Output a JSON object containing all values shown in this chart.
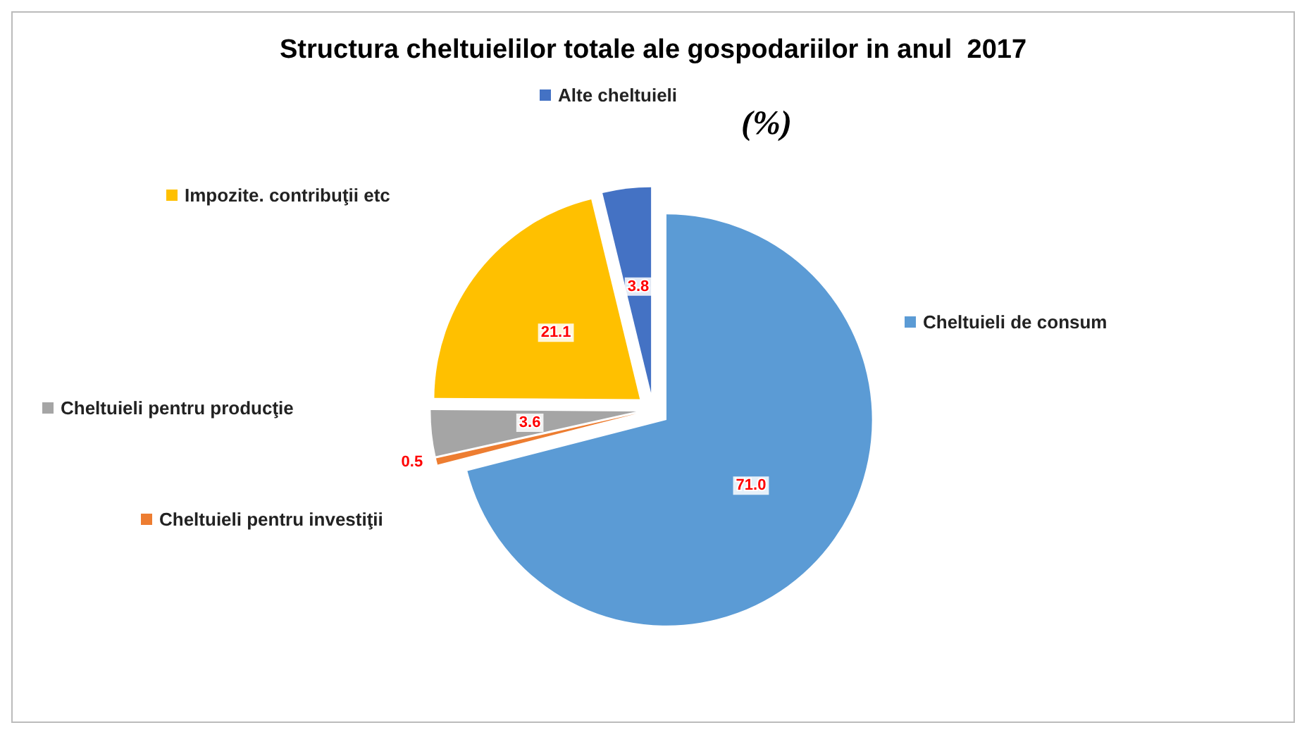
{
  "chart_data": {
    "type": "pie",
    "title": "Structura cheltuielilor totale ale gospodariilor in anul  2017",
    "subtitle": "(%)",
    "categories": [
      "Cheltuieli de consum",
      "Cheltuieli pentru investiţii",
      "Cheltuieli pentru producţie",
      "Impozite. contribuţii etc",
      "Alte cheltuieli"
    ],
    "values": [
      71.0,
      0.5,
      3.6,
      21.1,
      3.8
    ],
    "value_labels": [
      "71.0",
      "0.5",
      "3.6",
      "21.1",
      "3.8"
    ],
    "colors": [
      "#5b9bd5",
      "#ed7d31",
      "#a5a5a5",
      "#ffc000",
      "#4472c4"
    ],
    "legend": "left"
  }
}
